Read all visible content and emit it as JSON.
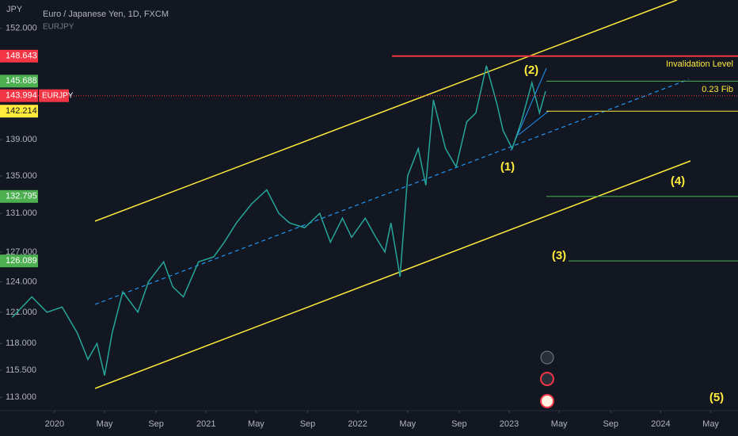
{
  "chart_data": {
    "type": "line",
    "title": "Euro / Japanese Yen, 1D, FXCM",
    "y_axis_label": "JPY",
    "symbol": "EURJPY",
    "log_scale": true,
    "x": [
      2019.72,
      2019.85,
      2019.95,
      2020.05,
      2020.15,
      2020.22,
      2020.28,
      2020.33,
      2020.38,
      2020.45,
      2020.55,
      2020.62,
      2020.72,
      2020.78,
      2020.85,
      2020.95,
      2021.05,
      2021.12,
      2021.2,
      2021.3,
      2021.4,
      2021.48,
      2021.55,
      2021.65,
      2021.75,
      2021.82,
      2021.9,
      2021.96,
      2022.05,
      2022.12,
      2022.18,
      2022.22,
      2022.28,
      2022.33,
      2022.4,
      2022.45,
      2022.5,
      2022.58,
      2022.65,
      2022.72,
      2022.78,
      2022.85,
      2022.92,
      2022.96,
      2023.02,
      2023.08,
      2023.15,
      2023.2,
      2023.24
    ],
    "series": [
      {
        "name": "EURJPY",
        "color": "#26a69a",
        "values": [
          120.5,
          122.5,
          121,
          121.5,
          119,
          116.5,
          118,
          115,
          119,
          123,
          121,
          124,
          126,
          123.5,
          122.5,
          126,
          126.5,
          128,
          130,
          132,
          133.5,
          131,
          130,
          129.5,
          131,
          128,
          130.5,
          128.5,
          130.5,
          128.5,
          127,
          130,
          124.5,
          135,
          138,
          134,
          143.5,
          138,
          136,
          141,
          142,
          147.5,
          143,
          140,
          138,
          141,
          145.5,
          142,
          144.5
        ]
      }
    ],
    "ylim": [
      111.8,
      155.5
    ],
    "yticks": [
      {
        "value": 152,
        "label": "152.000"
      },
      {
        "value": 139,
        "label": "139.000"
      },
      {
        "value": 135,
        "label": "135.000"
      },
      {
        "value": 131,
        "label": "131.000"
      },
      {
        "value": 127,
        "label": "127.000"
      },
      {
        "value": 124,
        "label": "124.000"
      },
      {
        "value": 121,
        "label": "121.000"
      },
      {
        "value": 118,
        "label": "118.000"
      },
      {
        "value": 115.5,
        "label": "115.500"
      },
      {
        "value": 113,
        "label": "113.000"
      }
    ],
    "xlim": [
      2019.64,
      2024.51
    ],
    "xticks": [
      {
        "value": 2020,
        "label": "2020"
      },
      {
        "value": 2020.33,
        "label": "May"
      },
      {
        "value": 2020.67,
        "label": "Sep"
      },
      {
        "value": 2021,
        "label": "2021"
      },
      {
        "value": 2021.33,
        "label": "May"
      },
      {
        "value": 2021.67,
        "label": "Sep"
      },
      {
        "value": 2022,
        "label": "2022"
      },
      {
        "value": 2022.33,
        "label": "May"
      },
      {
        "value": 2022.67,
        "label": "Sep"
      },
      {
        "value": 2023,
        "label": "2023"
      },
      {
        "value": 2023.33,
        "label": "May"
      },
      {
        "value": 2023.67,
        "label": "Sep"
      },
      {
        "value": 2024,
        "label": "2024"
      },
      {
        "value": 2024.33,
        "label": "May"
      }
    ],
    "levels": [
      {
        "value": 148.643,
        "color": "#f23645"
      },
      {
        "value": 145.688,
        "color": "#4caf50"
      },
      {
        "value": 143.994,
        "color": "#f23645"
      },
      {
        "value": 142.214,
        "color": "#ffeb3b"
      },
      {
        "value": 132.795,
        "color": "#4caf50"
      },
      {
        "value": 126.089,
        "color": "#4caf50"
      }
    ],
    "annotations": [
      "Invalidation Level",
      "0.23 Fib",
      "(1)",
      "(2)",
      "(3)",
      "(4)",
      "(5)"
    ]
  }
}
